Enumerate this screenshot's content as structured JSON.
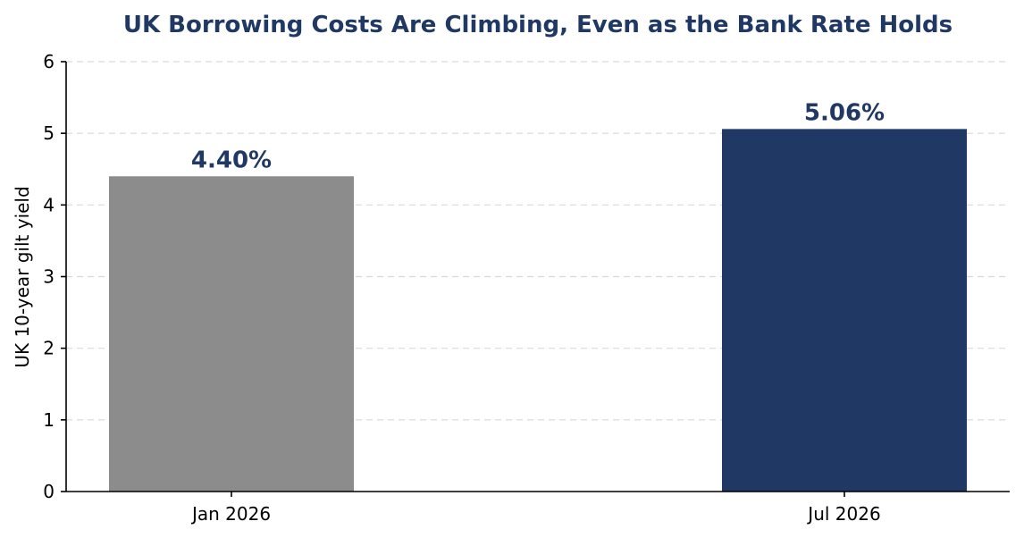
{
  "chart_data": {
    "type": "bar",
    "title": "UK Borrowing Costs Are Climbing, Even as the Bank Rate Holds",
    "ylabel": "UK 10-year gilt yield",
    "xlabel": "",
    "categories": [
      "Jan 2026",
      "Jul 2026"
    ],
    "values": [
      4.4,
      5.06
    ],
    "data_labels": [
      "4.40%",
      "5.06%"
    ],
    "bar_colors": [
      "#8c8c8c",
      "#1f3864"
    ],
    "ylim": [
      0,
      6
    ],
    "yticks": [
      "0",
      "1",
      "2",
      "3",
      "4",
      "5",
      "6"
    ],
    "grid": true,
    "legend": "none"
  }
}
